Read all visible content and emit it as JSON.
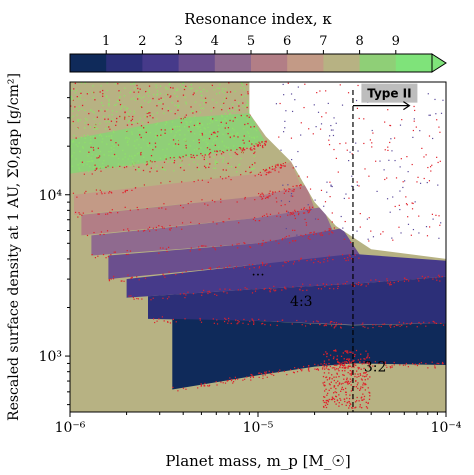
{
  "chart_data": {
    "type": "heatmap",
    "colorbar": {
      "label": "Resonance index, κ",
      "ticks": [
        "1",
        "2",
        "3",
        "4",
        "5",
        "6",
        "7",
        "8",
        "9"
      ],
      "colors": [
        "#0f2a5a",
        "#2c2f78",
        "#463a8a",
        "#6b4f8e",
        "#8f6a8f",
        "#b27e86",
        "#c39a86",
        "#b7b283",
        "#8fcf77",
        "#7fe37a"
      ],
      "extend": "max"
    },
    "xlabel": "Planet mass, m_p [M_☉]",
    "ylabel": "Rescaled surface density at 1 AU, Σ0,gap [g/cm²]",
    "xscale": "log",
    "yscale": "log",
    "xlim": [
      1e-06,
      0.0001
    ],
    "ylim": [
      450,
      50000
    ],
    "x_ticks": [
      {
        "value": 1e-06,
        "label": "10⁻⁶"
      },
      {
        "value": 1e-05,
        "label": "10⁻⁵"
      },
      {
        "value": 0.0001,
        "label": "10⁻⁴"
      }
    ],
    "y_ticks": [
      {
        "value": 1000,
        "label": "10³"
      },
      {
        "value": 10000,
        "label": "10⁴"
      }
    ],
    "vertical_line": {
      "x": 3.2e-05,
      "style": "dashed"
    },
    "bands": [
      {
        "kappa": 1,
        "resonance": "3:2",
        "lower": [
          [
            3.5e-06,
            620
          ],
          [
            1e-05,
            760
          ],
          [
            2e-05,
            860
          ],
          [
            3.2e-05,
            900
          ],
          [
            0.0001,
            880
          ]
        ],
        "upper": [
          [
            3.5e-06,
            1700
          ],
          [
            1e-05,
            1650
          ],
          [
            3.2e-05,
            1550
          ],
          [
            0.0001,
            1600
          ]
        ]
      },
      {
        "kappa": 2,
        "resonance": "4:3",
        "lower": [
          [
            2.6e-06,
            1700
          ],
          [
            1e-05,
            1650
          ],
          [
            3.2e-05,
            1560
          ],
          [
            0.0001,
            1600
          ]
        ],
        "upper": [
          [
            2.6e-06,
            2350
          ],
          [
            1e-05,
            2600
          ],
          [
            3.2e-05,
            2800
          ],
          [
            0.0001,
            3100
          ]
        ]
      },
      {
        "kappa": 3,
        "lower": [
          [
            2e-06,
            2300
          ],
          [
            1e-05,
            2600
          ],
          [
            3.2e-05,
            2800
          ],
          [
            0.0001,
            3100
          ]
        ],
        "upper": [
          [
            2e-06,
            3000
          ],
          [
            1e-05,
            3700
          ],
          [
            3.2e-05,
            4300
          ],
          [
            0.0001,
            3900
          ]
        ]
      },
      {
        "kappa": 4,
        "lower": [
          [
            1.6e-06,
            3000
          ],
          [
            1e-05,
            3700
          ],
          [
            3.5e-05,
            4200
          ]
        ],
        "upper": [
          [
            1.6e-06,
            4200
          ],
          [
            1e-05,
            5000
          ],
          [
            2.8e-05,
            6200
          ]
        ]
      },
      {
        "kappa": 5,
        "lower": [
          [
            1.3e-06,
            4200
          ],
          [
            1e-05,
            5000
          ],
          [
            2.5e-05,
            6000
          ]
        ],
        "upper": [
          [
            1.3e-06,
            5600
          ],
          [
            1e-05,
            7200
          ],
          [
            2.2e-05,
            8400
          ]
        ]
      },
      {
        "kappa": 6,
        "lower": [
          [
            1.15e-06,
            5600
          ],
          [
            1e-05,
            7200
          ],
          [
            2e-05,
            8200
          ]
        ],
        "upper": [
          [
            1.15e-06,
            7500
          ],
          [
            1e-05,
            9800
          ],
          [
            1.8e-05,
            11500
          ]
        ]
      },
      {
        "kappa": 7,
        "lower": [
          [
            1.05e-06,
            7500
          ],
          [
            1e-05,
            9800
          ],
          [
            1.7e-05,
            11200
          ]
        ],
        "upper": [
          [
            1.05e-06,
            10000
          ],
          [
            1e-05,
            13500
          ],
          [
            1.5e-05,
            16000
          ]
        ]
      },
      {
        "kappa": 8,
        "lower": [
          [
            1e-06,
            10000
          ],
          [
            1e-05,
            13500
          ],
          [
            1.4e-05,
            15500
          ]
        ],
        "upper": [
          [
            1e-06,
            13500
          ],
          [
            8e-06,
            19000
          ],
          [
            1.2e-05,
            22000
          ]
        ]
      },
      {
        "kappa": 9,
        "lower": [
          [
            1e-06,
            13500
          ],
          [
            8e-06,
            19000
          ],
          [
            1.1e-05,
            21000
          ]
        ],
        "upper": [
          [
            1e-06,
            22000
          ],
          [
            4e-06,
            30000
          ],
          [
            9e-06,
            32000
          ]
        ]
      }
    ],
    "annotations": [
      {
        "text": "3:2",
        "x": 4.2e-05,
        "y": 800
      },
      {
        "text": "4:3",
        "x": 1.7e-05,
        "y": 2050
      },
      {
        "text": "...",
        "x": 1e-05,
        "y": 3150
      },
      {
        "text": "Type II",
        "x": 5e-05,
        "y": 40000,
        "arrow": true
      }
    ]
  }
}
